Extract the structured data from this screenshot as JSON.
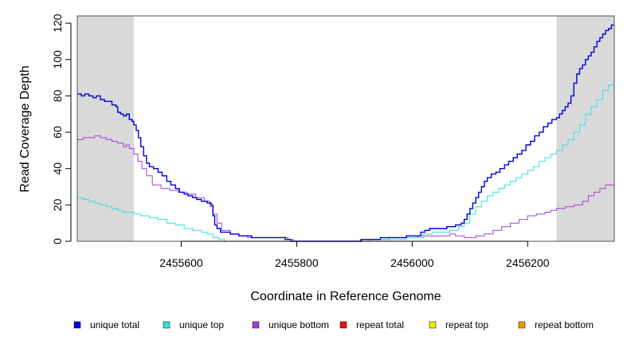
{
  "chart_data": {
    "type": "line",
    "xlabel": "Coordinate in Reference Genome",
    "ylabel": "Read Coverage Depth",
    "xlim": [
      2455420,
      2456350
    ],
    "ylim": [
      0,
      124
    ],
    "x_ticks": [
      2455600,
      2455800,
      2456000,
      2456200
    ],
    "x_tick_labels": [
      "2455600",
      "2455800",
      "2456000",
      "2456200"
    ],
    "y_ticks": [
      0,
      20,
      40,
      60,
      80,
      100,
      120
    ],
    "y_tick_labels": [
      "0",
      "20",
      "40",
      "60",
      "80",
      "100",
      "120"
    ],
    "shaded_regions": [
      [
        2455420,
        2455518
      ],
      [
        2456250,
        2456350
      ]
    ],
    "shade_color": "#d9d9d9",
    "grid": false,
    "legend_position": "bottom",
    "series": [
      {
        "name": "unique total",
        "color": "#0000dd",
        "points": [
          [
            2455420,
            81
          ],
          [
            2455427,
            80
          ],
          [
            2455433,
            81
          ],
          [
            2455440,
            80
          ],
          [
            2455447,
            79
          ],
          [
            2455453,
            80
          ],
          [
            2455460,
            78
          ],
          [
            2455467,
            77
          ],
          [
            2455473,
            77
          ],
          [
            2455480,
            75
          ],
          [
            2455487,
            74
          ],
          [
            2455490,
            71
          ],
          [
            2455495,
            70
          ],
          [
            2455500,
            69
          ],
          [
            2455505,
            70
          ],
          [
            2455510,
            67
          ],
          [
            2455515,
            66
          ],
          [
            2455518,
            64
          ],
          [
            2455522,
            61
          ],
          [
            2455526,
            57
          ],
          [
            2455530,
            52
          ],
          [
            2455535,
            47
          ],
          [
            2455540,
            43
          ],
          [
            2455545,
            41
          ],
          [
            2455552,
            40
          ],
          [
            2455560,
            38
          ],
          [
            2455567,
            36
          ],
          [
            2455575,
            33
          ],
          [
            2455582,
            31
          ],
          [
            2455590,
            29
          ],
          [
            2455597,
            27
          ],
          [
            2455605,
            26
          ],
          [
            2455612,
            25
          ],
          [
            2455620,
            24
          ],
          [
            2455627,
            23
          ],
          [
            2455635,
            22
          ],
          [
            2455645,
            21
          ],
          [
            2455652,
            20
          ],
          [
            2455655,
            14
          ],
          [
            2455658,
            9
          ],
          [
            2455662,
            7
          ],
          [
            2455668,
            5
          ],
          [
            2455685,
            4
          ],
          [
            2455700,
            3
          ],
          [
            2455715,
            3
          ],
          [
            2455722,
            2
          ],
          [
            2455770,
            2
          ],
          [
            2455780,
            1
          ],
          [
            2455790,
            0
          ],
          [
            2455910,
            0
          ],
          [
            2455912,
            1
          ],
          [
            2455940,
            1
          ],
          [
            2455945,
            2
          ],
          [
            2455985,
            2
          ],
          [
            2455990,
            3
          ],
          [
            2456010,
            3
          ],
          [
            2456015,
            5
          ],
          [
            2456022,
            6
          ],
          [
            2456030,
            7
          ],
          [
            2456055,
            7
          ],
          [
            2456060,
            8
          ],
          [
            2456075,
            9
          ],
          [
            2456085,
            10
          ],
          [
            2456090,
            12
          ],
          [
            2456095,
            15
          ],
          [
            2456100,
            18
          ],
          [
            2456105,
            21
          ],
          [
            2456110,
            24
          ],
          [
            2456115,
            27
          ],
          [
            2456120,
            30
          ],
          [
            2456125,
            33
          ],
          [
            2456130,
            35
          ],
          [
            2456137,
            37
          ],
          [
            2456145,
            38
          ],
          [
            2456152,
            40
          ],
          [
            2456160,
            42
          ],
          [
            2456167,
            44
          ],
          [
            2456175,
            46
          ],
          [
            2456182,
            48
          ],
          [
            2456190,
            50
          ],
          [
            2456197,
            53
          ],
          [
            2456205,
            55
          ],
          [
            2456212,
            58
          ],
          [
            2456220,
            60
          ],
          [
            2456227,
            63
          ],
          [
            2456235,
            65
          ],
          [
            2456242,
            67
          ],
          [
            2456250,
            68
          ],
          [
            2456255,
            70
          ],
          [
            2456260,
            72
          ],
          [
            2456265,
            74
          ],
          [
            2456270,
            76
          ],
          [
            2456275,
            80
          ],
          [
            2456280,
            87
          ],
          [
            2456285,
            92
          ],
          [
            2456290,
            95
          ],
          [
            2456295,
            97
          ],
          [
            2456300,
            100
          ],
          [
            2456305,
            102
          ],
          [
            2456310,
            104
          ],
          [
            2456315,
            107
          ],
          [
            2456320,
            110
          ],
          [
            2456325,
            112
          ],
          [
            2456330,
            114
          ],
          [
            2456335,
            116
          ],
          [
            2456340,
            117
          ],
          [
            2456345,
            119
          ],
          [
            2456350,
            119
          ]
        ]
      },
      {
        "name": "unique top",
        "color": "#33e0e0",
        "points": [
          [
            2455420,
            24
          ],
          [
            2455430,
            23
          ],
          [
            2455440,
            22
          ],
          [
            2455450,
            21
          ],
          [
            2455460,
            20
          ],
          [
            2455470,
            19
          ],
          [
            2455480,
            18
          ],
          [
            2455490,
            17
          ],
          [
            2455500,
            16
          ],
          [
            2455510,
            16
          ],
          [
            2455518,
            15
          ],
          [
            2455530,
            14
          ],
          [
            2455545,
            13
          ],
          [
            2455560,
            12
          ],
          [
            2455575,
            10
          ],
          [
            2455590,
            9
          ],
          [
            2455605,
            7
          ],
          [
            2455620,
            6
          ],
          [
            2455635,
            5
          ],
          [
            2455645,
            4
          ],
          [
            2455655,
            2
          ],
          [
            2455665,
            1
          ],
          [
            2455675,
            0
          ],
          [
            2455920,
            0
          ],
          [
            2455925,
            1
          ],
          [
            2455975,
            1
          ],
          [
            2455990,
            2
          ],
          [
            2456010,
            2
          ],
          [
            2456020,
            4
          ],
          [
            2456035,
            5
          ],
          [
            2456055,
            5
          ],
          [
            2456065,
            6
          ],
          [
            2456080,
            8
          ],
          [
            2456090,
            10
          ],
          [
            2456100,
            15
          ],
          [
            2456110,
            19
          ],
          [
            2456120,
            22
          ],
          [
            2456130,
            25
          ],
          [
            2456140,
            27
          ],
          [
            2456150,
            29
          ],
          [
            2456160,
            31
          ],
          [
            2456170,
            33
          ],
          [
            2456180,
            35
          ],
          [
            2456190,
            37
          ],
          [
            2456200,
            39
          ],
          [
            2456210,
            41
          ],
          [
            2456220,
            44
          ],
          [
            2456230,
            46
          ],
          [
            2456240,
            48
          ],
          [
            2456250,
            50
          ],
          [
            2456260,
            53
          ],
          [
            2456270,
            56
          ],
          [
            2456280,
            60
          ],
          [
            2456290,
            64
          ],
          [
            2456300,
            70
          ],
          [
            2456310,
            74
          ],
          [
            2456320,
            78
          ],
          [
            2456330,
            83
          ],
          [
            2456340,
            86
          ],
          [
            2456350,
            89
          ]
        ]
      },
      {
        "name": "unique bottom",
        "color": "#a040d8",
        "points": [
          [
            2455420,
            56
          ],
          [
            2455430,
            57
          ],
          [
            2455440,
            57
          ],
          [
            2455450,
            58
          ],
          [
            2455460,
            57
          ],
          [
            2455470,
            56
          ],
          [
            2455480,
            55
          ],
          [
            2455490,
            54
          ],
          [
            2455500,
            52
          ],
          [
            2455505,
            53
          ],
          [
            2455510,
            51
          ],
          [
            2455518,
            48
          ],
          [
            2455525,
            44
          ],
          [
            2455532,
            40
          ],
          [
            2455540,
            36
          ],
          [
            2455550,
            31
          ],
          [
            2455565,
            29
          ],
          [
            2455580,
            28
          ],
          [
            2455595,
            27
          ],
          [
            2455610,
            26
          ],
          [
            2455625,
            24
          ],
          [
            2455640,
            22
          ],
          [
            2455650,
            19
          ],
          [
            2455655,
            15
          ],
          [
            2455662,
            10
          ],
          [
            2455670,
            6
          ],
          [
            2455685,
            4
          ],
          [
            2455700,
            3
          ],
          [
            2455715,
            2
          ],
          [
            2455775,
            2
          ],
          [
            2455785,
            1
          ],
          [
            2455795,
            0
          ],
          [
            2455905,
            0
          ],
          [
            2455910,
            1
          ],
          [
            2455950,
            1
          ],
          [
            2455960,
            2
          ],
          [
            2456000,
            2
          ],
          [
            2456010,
            3
          ],
          [
            2456025,
            3
          ],
          [
            2456050,
            3
          ],
          [
            2456065,
            4
          ],
          [
            2456075,
            3
          ],
          [
            2456090,
            2
          ],
          [
            2456110,
            3
          ],
          [
            2456125,
            4
          ],
          [
            2456140,
            6
          ],
          [
            2456155,
            8
          ],
          [
            2456170,
            10
          ],
          [
            2456185,
            12
          ],
          [
            2456200,
            14
          ],
          [
            2456215,
            15
          ],
          [
            2456230,
            16
          ],
          [
            2456240,
            17
          ],
          [
            2456250,
            18
          ],
          [
            2456265,
            19
          ],
          [
            2456280,
            20
          ],
          [
            2456295,
            22
          ],
          [
            2456305,
            25
          ],
          [
            2456315,
            27
          ],
          [
            2456325,
            29
          ],
          [
            2456335,
            31
          ],
          [
            2456350,
            31
          ]
        ]
      },
      {
        "name": "repeat total",
        "color": "#ee1111",
        "points": [
          [
            2455420,
            0
          ],
          [
            2456350,
            0
          ]
        ]
      },
      {
        "name": "repeat top",
        "color": "#eeee00",
        "points": [
          [
            2455420,
            0
          ],
          [
            2456350,
            0
          ]
        ]
      },
      {
        "name": "repeat bottom",
        "color": "#ee9900",
        "points": [
          [
            2455420,
            0
          ],
          [
            2456350,
            0
          ]
        ]
      }
    ]
  }
}
